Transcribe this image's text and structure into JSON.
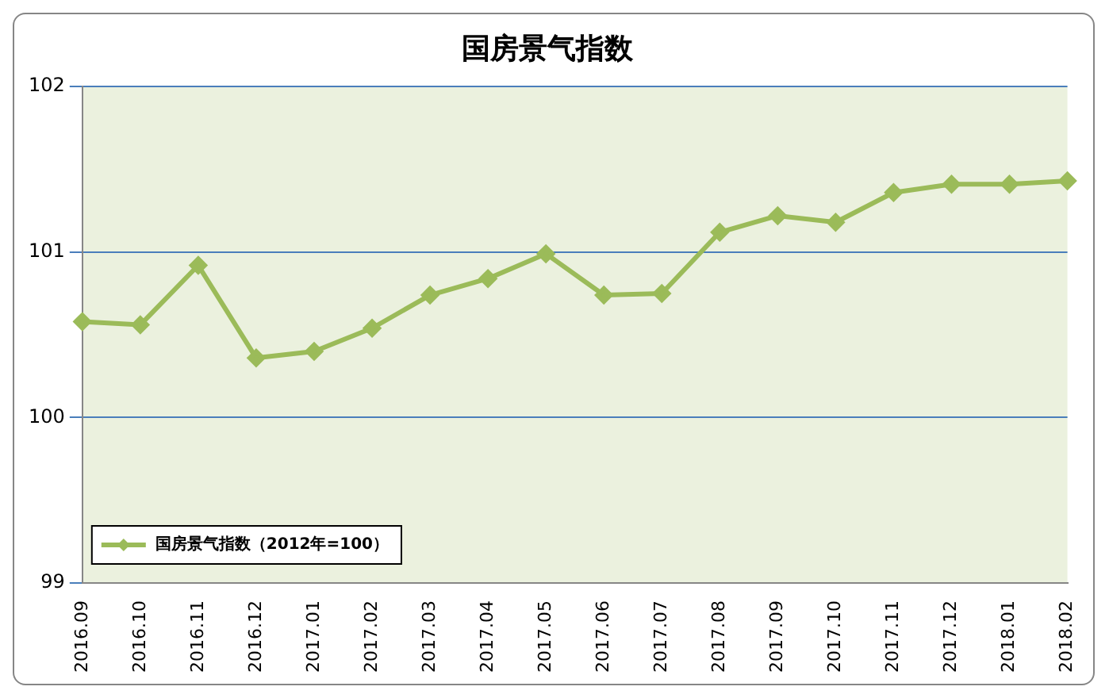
{
  "chart_data": {
    "type": "line",
    "title": "国房景气指数",
    "categories": [
      "2016.09",
      "2016.10",
      "2016.11",
      "2016.12",
      "2017.01",
      "2017.02",
      "2017.03",
      "2017.04",
      "2017.05",
      "2017.06",
      "2017.07",
      "2017.08",
      "2017.09",
      "2017.10",
      "2017.11",
      "2017.12",
      "2018.01",
      "2018.02"
    ],
    "series": [
      {
        "name": "国房景气指数（2012年=100）",
        "color": "#9bbb59",
        "values": [
          100.58,
          100.56,
          100.92,
          100.36,
          100.4,
          100.54,
          100.74,
          100.84,
          100.99,
          100.74,
          100.75,
          101.12,
          101.22,
          101.18,
          101.36,
          101.41,
          101.41,
          101.43
        ]
      }
    ],
    "ylim": [
      99,
      102
    ],
    "yticks": [
      99,
      100,
      101,
      102
    ],
    "grid": "y",
    "legend": "bottom left",
    "marker": "diamond",
    "line_style": "solid"
  }
}
